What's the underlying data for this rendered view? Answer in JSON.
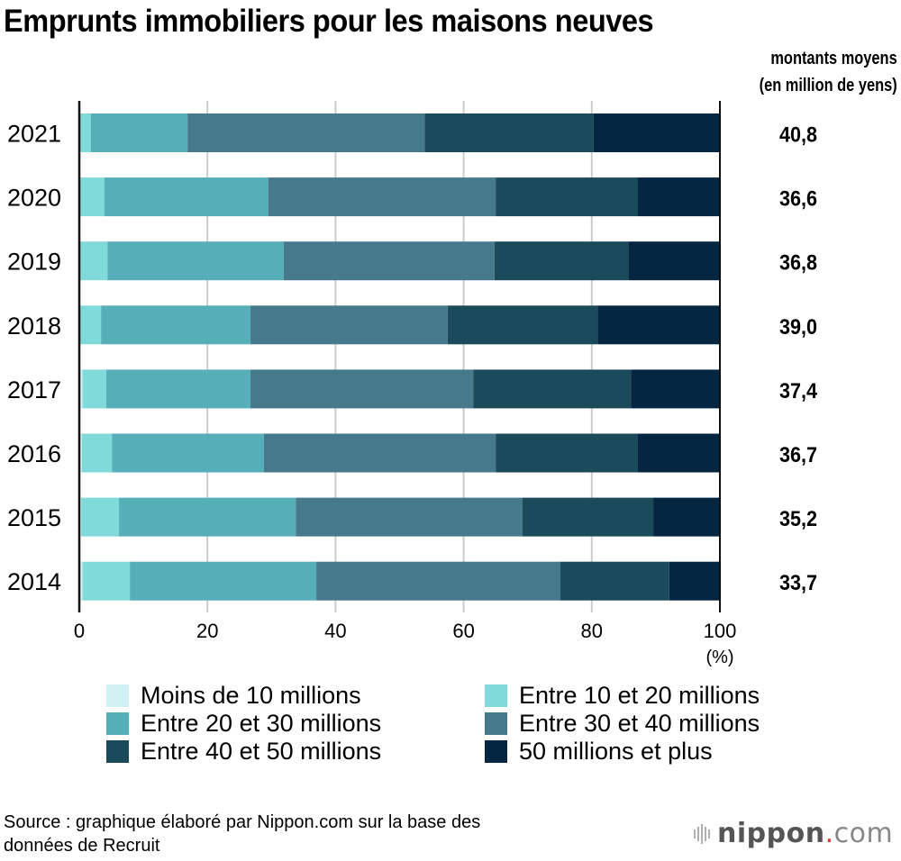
{
  "chart_data": {
    "type": "bar",
    "orientation": "horizontal",
    "stacked": true,
    "title": "Emprunts immobiliers pour les maisons neuves",
    "xlabel": "(%)",
    "ylabel": "",
    "xlim": [
      0,
      100
    ],
    "xticks": [
      "0",
      "20",
      "40",
      "60",
      "80",
      "100"
    ],
    "grid": true,
    "legend_position": "bottom",
    "categories": [
      "2021",
      "2020",
      "2019",
      "2018",
      "2017",
      "2016",
      "2015",
      "2014"
    ],
    "series": [
      {
        "name": "Moins de 10 millions",
        "color": "#d0f0f1",
        "values": [
          0.0,
          0.0,
          0.0,
          0.0,
          0.5,
          0.4,
          0.3,
          0.5
        ]
      },
      {
        "name": "Entre 10 et 20 millions",
        "color": "#7fdad9",
        "values": [
          1.8,
          3.9,
          4.4,
          3.4,
          3.7,
          4.7,
          5.9,
          7.4
        ]
      },
      {
        "name": "Entre 20 et 30 millions",
        "color": "#55aeb8",
        "values": [
          15.1,
          25.6,
          27.5,
          23.3,
          22.5,
          23.7,
          27.6,
          29.1
        ]
      },
      {
        "name": "Entre 30 et 40 millions",
        "color": "#47798c",
        "values": [
          37.0,
          35.5,
          32.9,
          30.8,
          34.8,
          36.2,
          35.4,
          38.1
        ]
      },
      {
        "name": "Entre 40 et 50 millions",
        "color": "#1b4a5a",
        "values": [
          26.4,
          22.2,
          20.9,
          23.4,
          24.6,
          22.1,
          20.4,
          17.0
        ]
      },
      {
        "name": "50 millions et plus",
        "color": "#042640",
        "values": [
          19.7,
          12.8,
          14.3,
          19.1,
          13.9,
          12.9,
          10.4,
          7.9
        ]
      }
    ],
    "annotations": {
      "header_line1": "montants moyens",
      "header_line2": "(en million de yens)",
      "average_amounts": [
        "40,8",
        "36,6",
        "36,8",
        "39,0",
        "37,4",
        "36,7",
        "35,2",
        "33,7"
      ]
    }
  },
  "source_line1": "Source : graphique élaboré par Nippon.com sur la base des",
  "source_line2": "données de Recruit",
  "logo": {
    "name": "nippon",
    "dot": ".",
    "suffix": "com",
    "accent_color": "#e8312f"
  }
}
